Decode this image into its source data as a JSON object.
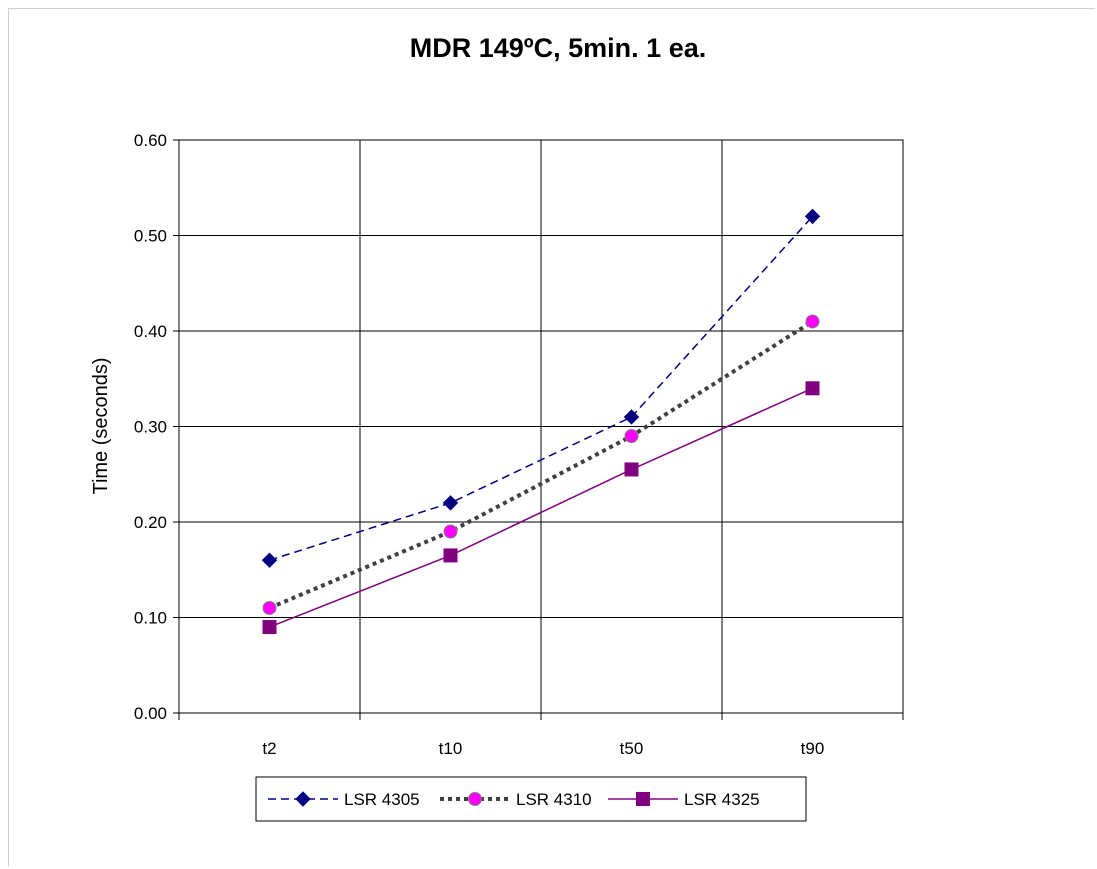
{
  "chart_data": {
    "type": "line",
    "title": "MDR  149ºC, 5min.  1 ea.",
    "xlabel": "",
    "ylabel": "Time (seconds)",
    "categories": [
      "t2",
      "t10",
      "t50",
      "t90"
    ],
    "ylim": [
      0,
      0.6
    ],
    "yticks": [
      "0.00",
      "0.10",
      "0.20",
      "0.30",
      "0.40",
      "0.50",
      "0.60"
    ],
    "grid": true,
    "legend_position": "bottom",
    "series": [
      {
        "name": "LSR 4305",
        "values": [
          0.16,
          0.22,
          0.31,
          0.52
        ],
        "color": "#000080",
        "line_style": "dashed",
        "marker": "diamond"
      },
      {
        "name": "LSR 4310",
        "values": [
          0.11,
          0.19,
          0.29,
          0.41
        ],
        "color": "#404040",
        "marker_color": "#ff00ff",
        "line_style": "dotted",
        "marker": "circle"
      },
      {
        "name": "LSR 4325",
        "values": [
          0.09,
          0.165,
          0.255,
          0.34
        ],
        "color": "#800080",
        "line_style": "solid",
        "marker": "square"
      }
    ]
  }
}
